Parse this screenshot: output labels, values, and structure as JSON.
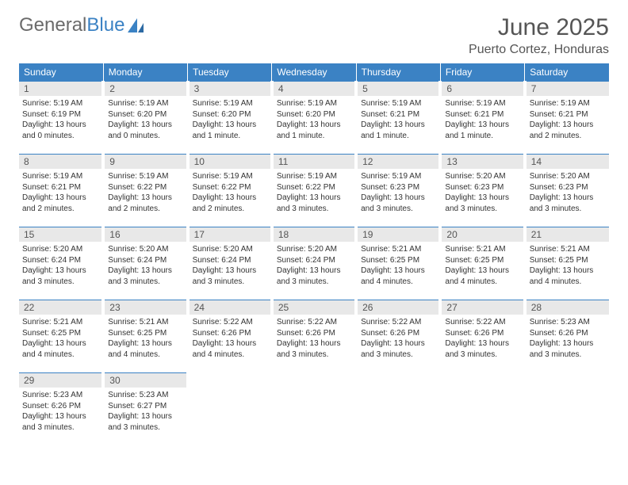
{
  "brand": {
    "part1": "General",
    "part2": "Blue"
  },
  "title": "June 2025",
  "location": "Puerto Cortez, Honduras",
  "colors": {
    "header_bg": "#3b82c4",
    "header_text": "#ffffff",
    "daynum_bg": "#e8e8e8",
    "daynum_border": "#3b82c4",
    "text": "#333333",
    "logo_grey": "#6b6b6b"
  },
  "weekdays": [
    "Sunday",
    "Monday",
    "Tuesday",
    "Wednesday",
    "Thursday",
    "Friday",
    "Saturday"
  ],
  "weeks": [
    [
      {
        "n": "1",
        "sr": "Sunrise: 5:19 AM",
        "ss": "Sunset: 6:19 PM",
        "dl": "Daylight: 13 hours and 0 minutes."
      },
      {
        "n": "2",
        "sr": "Sunrise: 5:19 AM",
        "ss": "Sunset: 6:20 PM",
        "dl": "Daylight: 13 hours and 0 minutes."
      },
      {
        "n": "3",
        "sr": "Sunrise: 5:19 AM",
        "ss": "Sunset: 6:20 PM",
        "dl": "Daylight: 13 hours and 1 minute."
      },
      {
        "n": "4",
        "sr": "Sunrise: 5:19 AM",
        "ss": "Sunset: 6:20 PM",
        "dl": "Daylight: 13 hours and 1 minute."
      },
      {
        "n": "5",
        "sr": "Sunrise: 5:19 AM",
        "ss": "Sunset: 6:21 PM",
        "dl": "Daylight: 13 hours and 1 minute."
      },
      {
        "n": "6",
        "sr": "Sunrise: 5:19 AM",
        "ss": "Sunset: 6:21 PM",
        "dl": "Daylight: 13 hours and 1 minute."
      },
      {
        "n": "7",
        "sr": "Sunrise: 5:19 AM",
        "ss": "Sunset: 6:21 PM",
        "dl": "Daylight: 13 hours and 2 minutes."
      }
    ],
    [
      {
        "n": "8",
        "sr": "Sunrise: 5:19 AM",
        "ss": "Sunset: 6:21 PM",
        "dl": "Daylight: 13 hours and 2 minutes."
      },
      {
        "n": "9",
        "sr": "Sunrise: 5:19 AM",
        "ss": "Sunset: 6:22 PM",
        "dl": "Daylight: 13 hours and 2 minutes."
      },
      {
        "n": "10",
        "sr": "Sunrise: 5:19 AM",
        "ss": "Sunset: 6:22 PM",
        "dl": "Daylight: 13 hours and 2 minutes."
      },
      {
        "n": "11",
        "sr": "Sunrise: 5:19 AM",
        "ss": "Sunset: 6:22 PM",
        "dl": "Daylight: 13 hours and 3 minutes."
      },
      {
        "n": "12",
        "sr": "Sunrise: 5:19 AM",
        "ss": "Sunset: 6:23 PM",
        "dl": "Daylight: 13 hours and 3 minutes."
      },
      {
        "n": "13",
        "sr": "Sunrise: 5:20 AM",
        "ss": "Sunset: 6:23 PM",
        "dl": "Daylight: 13 hours and 3 minutes."
      },
      {
        "n": "14",
        "sr": "Sunrise: 5:20 AM",
        "ss": "Sunset: 6:23 PM",
        "dl": "Daylight: 13 hours and 3 minutes."
      }
    ],
    [
      {
        "n": "15",
        "sr": "Sunrise: 5:20 AM",
        "ss": "Sunset: 6:24 PM",
        "dl": "Daylight: 13 hours and 3 minutes."
      },
      {
        "n": "16",
        "sr": "Sunrise: 5:20 AM",
        "ss": "Sunset: 6:24 PM",
        "dl": "Daylight: 13 hours and 3 minutes."
      },
      {
        "n": "17",
        "sr": "Sunrise: 5:20 AM",
        "ss": "Sunset: 6:24 PM",
        "dl": "Daylight: 13 hours and 3 minutes."
      },
      {
        "n": "18",
        "sr": "Sunrise: 5:20 AM",
        "ss": "Sunset: 6:24 PM",
        "dl": "Daylight: 13 hours and 3 minutes."
      },
      {
        "n": "19",
        "sr": "Sunrise: 5:21 AM",
        "ss": "Sunset: 6:25 PM",
        "dl": "Daylight: 13 hours and 4 minutes."
      },
      {
        "n": "20",
        "sr": "Sunrise: 5:21 AM",
        "ss": "Sunset: 6:25 PM",
        "dl": "Daylight: 13 hours and 4 minutes."
      },
      {
        "n": "21",
        "sr": "Sunrise: 5:21 AM",
        "ss": "Sunset: 6:25 PM",
        "dl": "Daylight: 13 hours and 4 minutes."
      }
    ],
    [
      {
        "n": "22",
        "sr": "Sunrise: 5:21 AM",
        "ss": "Sunset: 6:25 PM",
        "dl": "Daylight: 13 hours and 4 minutes."
      },
      {
        "n": "23",
        "sr": "Sunrise: 5:21 AM",
        "ss": "Sunset: 6:25 PM",
        "dl": "Daylight: 13 hours and 4 minutes."
      },
      {
        "n": "24",
        "sr": "Sunrise: 5:22 AM",
        "ss": "Sunset: 6:26 PM",
        "dl": "Daylight: 13 hours and 4 minutes."
      },
      {
        "n": "25",
        "sr": "Sunrise: 5:22 AM",
        "ss": "Sunset: 6:26 PM",
        "dl": "Daylight: 13 hours and 3 minutes."
      },
      {
        "n": "26",
        "sr": "Sunrise: 5:22 AM",
        "ss": "Sunset: 6:26 PM",
        "dl": "Daylight: 13 hours and 3 minutes."
      },
      {
        "n": "27",
        "sr": "Sunrise: 5:22 AM",
        "ss": "Sunset: 6:26 PM",
        "dl": "Daylight: 13 hours and 3 minutes."
      },
      {
        "n": "28",
        "sr": "Sunrise: 5:23 AM",
        "ss": "Sunset: 6:26 PM",
        "dl": "Daylight: 13 hours and 3 minutes."
      }
    ],
    [
      {
        "n": "29",
        "sr": "Sunrise: 5:23 AM",
        "ss": "Sunset: 6:26 PM",
        "dl": "Daylight: 13 hours and 3 minutes."
      },
      {
        "n": "30",
        "sr": "Sunrise: 5:23 AM",
        "ss": "Sunset: 6:27 PM",
        "dl": "Daylight: 13 hours and 3 minutes."
      },
      null,
      null,
      null,
      null,
      null
    ]
  ]
}
